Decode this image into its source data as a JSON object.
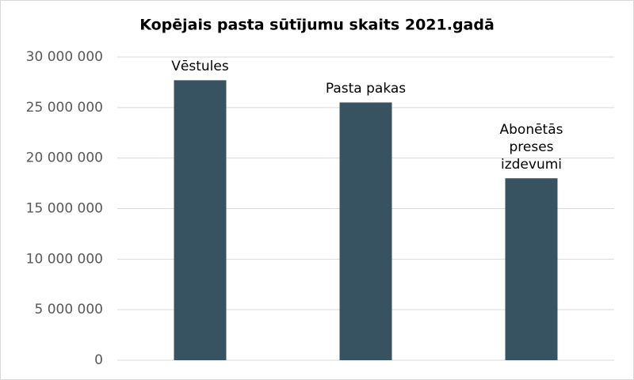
{
  "chart_data": {
    "type": "bar",
    "title": "Kopējais pasta sūtījumu skaits 2021.gadā",
    "categories": [
      "Vēstules",
      "Pasta pakas",
      "Abonētās preses izdevumi"
    ],
    "values": [
      27700000,
      25500000,
      18000000
    ],
    "color": "#375361",
    "ylim": [
      0,
      30000000
    ],
    "yticks": [
      0,
      {
        "value": 5000000,
        "label": "5 000 000"
      },
      {
        "value": 10000000,
        "label": "10 000 000"
      },
      {
        "value": 15000000,
        "label": "15 000 000"
      },
      {
        "value": 20000000,
        "label": "20 000 000"
      },
      {
        "value": 25000000,
        "label": "25 000 000"
      },
      {
        "value": 30000000,
        "label": "30 000 000"
      }
    ],
    "grid": true
  }
}
